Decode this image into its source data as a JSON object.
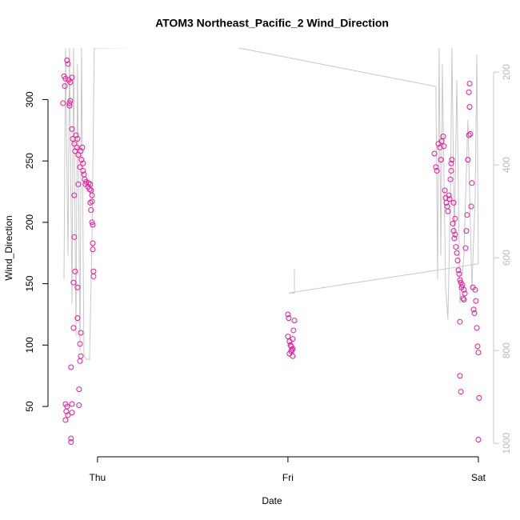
{
  "chart_data": {
    "type": "scatter",
    "title": "ATOM3 Northeast_Pacific_2 Wind_Direction",
    "x_label": "Date",
    "y_label": "Wind_Direction",
    "xlim": [
      -0.26,
      2.08
    ],
    "xticks": [
      {
        "value": 0,
        "label": "Thu"
      },
      {
        "value": 1,
        "label": "Fri"
      },
      {
        "value": 2,
        "label": "Sat"
      }
    ],
    "ylim": [
      9,
      342
    ],
    "yticks": [
      50,
      100,
      150,
      200,
      250,
      300
    ],
    "y2lim": [
      1029,
      148
    ],
    "y2ticks": [
      200,
      400,
      600,
      800,
      1000
    ],
    "series": [
      {
        "color": "#ee169c",
        "x": [
          -0.176,
          -0.168,
          -0.16,
          -0.155,
          -0.151,
          -0.143,
          -0.134,
          -0.181,
          -0.172,
          -0.147,
          -0.143,
          -0.147,
          -0.134,
          -0.13,
          -0.122,
          -0.113,
          -0.109,
          -0.105,
          -0.118,
          -0.101,
          -0.092,
          -0.088,
          -0.084,
          -0.08,
          -0.076,
          -0.076,
          -0.071,
          -0.067,
          -0.063,
          -0.059,
          -0.05,
          -0.046,
          -0.042,
          -0.038,
          -0.034,
          -0.029,
          -0.038,
          -0.034,
          -0.029,
          -0.029,
          -0.025,
          -0.025,
          -0.025,
          -0.021,
          -0.021,
          -0.122,
          -0.118,
          -0.126,
          -0.122,
          -0.101,
          -0.105,
          -0.126,
          -0.088,
          -0.092,
          -0.088,
          -0.092,
          -0.139,
          -0.097,
          -0.168,
          -0.16,
          -0.164,
          -0.155,
          -0.168,
          -0.134,
          -0.134,
          -0.097,
          -0.139,
          -0.139,
          -0.105,
          1.0,
          1.004,
          1.0,
          1.008,
          1.017,
          1.021,
          1.008,
          1.025,
          1.013,
          1.029,
          1.034,
          1.025,
          1.025,
          1.017,
          1.769,
          1.777,
          1.782,
          1.79,
          1.798,
          1.803,
          1.807,
          1.815,
          1.819,
          1.824,
          1.828,
          1.832,
          1.836,
          1.84,
          1.845,
          1.849,
          1.853,
          1.857,
          1.857,
          1.861,
          1.866,
          1.87,
          1.874,
          1.878,
          1.882,
          1.887,
          1.891,
          1.895,
          1.899,
          1.903,
          1.908,
          1.912,
          1.916,
          1.92,
          1.924,
          1.929,
          1.933,
          1.937,
          1.941,
          1.945,
          1.95,
          1.954,
          1.95,
          1.954,
          1.958,
          1.962,
          1.966,
          1.971,
          1.975,
          1.979,
          1.983,
          1.987,
          1.992,
          1.996,
          2.0,
          2.004,
          2.0,
          1.903,
          1.908,
          1.903,
          1.924,
          1.87,
          1.878
        ],
        "values": [
          319,
          317,
          332,
          329,
          316,
          314,
          318,
          297,
          311,
          297,
          299,
          295,
          276,
          268,
          264,
          271,
          261,
          268,
          258,
          255,
          245,
          258,
          251,
          261,
          248,
          242,
          239,
          235,
          231,
          233,
          229,
          232,
          227,
          231,
          226,
          222,
          216,
          210,
          217,
          200,
          198,
          183,
          178,
          160,
          156,
          188,
          160,
          151,
          222,
          231,
          122,
          114,
          110,
          101,
          91,
          87,
          82,
          64,
          52,
          50,
          46,
          43,
          39,
          52,
          45,
          51,
          24,
          21,
          147,
          125,
          122,
          107,
          103,
          99,
          96,
          93,
          91,
          100,
          112,
          120,
          105,
          97,
          95,
          256,
          245,
          242,
          264,
          261,
          251,
          266,
          270,
          262,
          226,
          220,
          216,
          213,
          209,
          222,
          219,
          235,
          242,
          248,
          251,
          199,
          193,
          187,
          190,
          180,
          175,
          169,
          161,
          158,
          153,
          151,
          147,
          149,
          138,
          145,
          142,
          179,
          193,
          206,
          251,
          271,
          294,
          306,
          313,
          272,
          213,
          232,
          147,
          129,
          126,
          145,
          136,
          114,
          99,
          94,
          57,
          23,
          75,
          62,
          119,
          137,
          216,
          203
        ]
      },
      {
        "color": "#c8c8c8",
        "axis": "y2",
        "x": [
          -0.176,
          -0.168,
          -0.155,
          -0.147,
          -0.134,
          -0.126,
          -0.113,
          -0.105,
          -0.092,
          -0.084,
          -0.071,
          -0.059,
          -0.042,
          -0.029,
          -0.017,
          0.706,
          1.777,
          1.786,
          1.794,
          1.803,
          1.811,
          1.828,
          1.84,
          1.853,
          1.861,
          1.874,
          1.887,
          1.903,
          1.924,
          1.945,
          1.966,
          1.983,
          1.992,
          2.0,
          1.004,
          1.034,
          1.034
        ],
        "values": [
          647,
          148,
          595,
          148,
          699,
          148,
          768,
          182,
          802,
          148,
          811,
          819,
          819,
          561,
          148,
          145,
          231,
          647,
          148,
          595,
          182,
          664,
          733,
          475,
          148,
          561,
          217,
          699,
          595,
          303,
          664,
          475,
          162,
          613,
          676,
          676,
          625
        ]
      }
    ]
  }
}
